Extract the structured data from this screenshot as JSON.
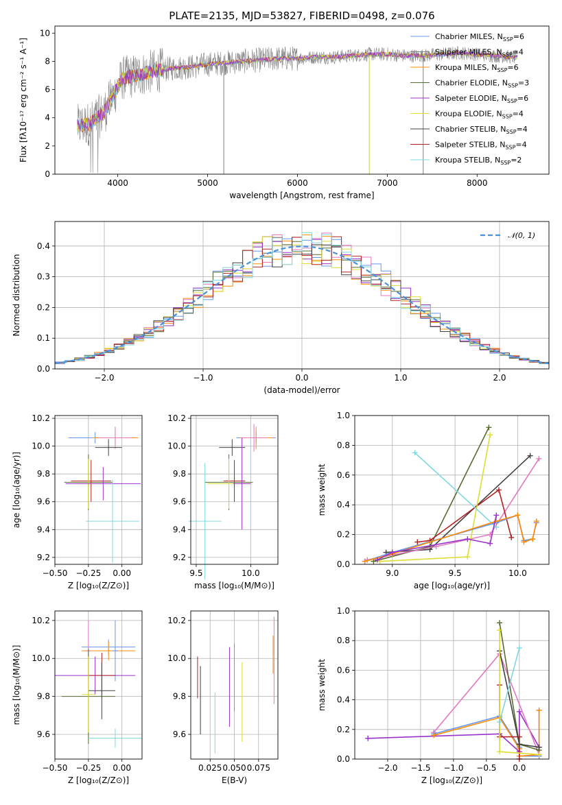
{
  "title": "PLATE=2135, MJD=53827, FIBERID=0498, z=0.076",
  "colors": {
    "chabrier_miles": "#6495ed",
    "salpeter_miles": "#808080",
    "kroupa_miles": "#ff8c00",
    "chabrier_elodie": "#556b2f",
    "salpeter_elodie": "#9932cc",
    "kroupa_elodie": "#dddd33",
    "chabrier_stelib": "#404040",
    "salpeter_stelib": "#b22222",
    "kroupa_stelib": "#7fd8e0",
    "pink": "#e377c2",
    "green": "#6b8e6b",
    "normal_curve": "#4a90d9"
  },
  "chart_data": [
    {
      "id": "spectrum",
      "type": "line",
      "title": "PLATE=2135, MJD=53827, FIBERID=0498, z=0.076",
      "xlabel": "wavelength [Angstrom, rest frame]",
      "ylabel": "Flux [fλ10⁻¹⁷ erg cm⁻² s⁻¹ A⁻¹]",
      "xlim": [
        3300,
        8800
      ],
      "ylim": [
        0,
        10.5
      ],
      "xticks": [
        4000,
        5000,
        6000,
        7000,
        8000
      ],
      "yticks": [
        0,
        2,
        4,
        6,
        8,
        10
      ],
      "legend_position": "right",
      "legend": [
        "Chabrier MILES, N_SSP=6",
        "Salpeter MILES, N_SSP=4",
        "Kroupa MILES, N_SSP=6",
        "Chabrier ELODIE, N_SSP=3",
        "Salpeter ELODIE, N_SSP=6",
        "Kroupa ELODIE, N_SSP=4",
        "Chabrier STELIB, N_SSP=4",
        "Salpeter STELIB, N_SSP=4",
        "Kroupa STELIB, N_SSP=2"
      ],
      "continuum": {
        "x": [
          3550,
          3700,
          3850,
          3950,
          4050,
          4200,
          4400,
          4600,
          4800,
          5000,
          5200,
          5400,
          5600,
          5800,
          6000,
          6200,
          6400,
          6600,
          6800,
          7000,
          7200,
          7400,
          7600,
          7800,
          8000,
          8200,
          8400
        ],
        "y": [
          3.4,
          3.6,
          4.4,
          5.6,
          6.8,
          7.0,
          7.3,
          7.5,
          7.6,
          7.8,
          7.9,
          8.0,
          8.1,
          8.2,
          8.2,
          8.3,
          8.3,
          8.4,
          8.5,
          8.5,
          8.4,
          8.4,
          8.5,
          8.6,
          8.5,
          8.4,
          8.3
        ]
      }
    },
    {
      "id": "residuals",
      "type": "bar",
      "xlabel": "(data-model)/error",
      "ylabel": "Normed distribution",
      "xlim": [
        -2.5,
        2.5
      ],
      "ylim": [
        0,
        0.48
      ],
      "xticks": [
        -2,
        -1,
        0,
        1,
        2
      ],
      "yticks": [
        0.0,
        0.1,
        0.2,
        0.3,
        0.4
      ],
      "legend": [
        "𝒩(0, 1)"
      ],
      "legend_position": "top-right",
      "bin_width": 0.1,
      "approx_distribution": "normal(0, 1)"
    },
    {
      "id": "age_vs_Z",
      "type": "scatter",
      "xlabel": "Z [log₁₀(Z/Z⊙)]",
      "ylabel": "age  [log₁₀(age/yr)]",
      "xlim": [
        -0.5,
        0.15
      ],
      "ylim": [
        9.15,
        10.22
      ],
      "xticks": [
        -0.5,
        -0.25,
        0.0
      ],
      "xticklabels": [
        "−0.50",
        "−0.25",
        "0.00"
      ],
      "yticks": [
        9.2,
        9.4,
        9.6,
        9.8,
        10.0,
        10.2
      ],
      "points": [
        {
          "x": -0.2,
          "y": 10.06,
          "xerr": 0.2,
          "yerr": 0.04,
          "color": "chabrier_miles"
        },
        {
          "x": -0.05,
          "y": 10.06,
          "xerr": 0.17,
          "yerr": 0.05,
          "color": "kroupa_miles"
        },
        {
          "x": -0.05,
          "y": 10.06,
          "xerr": 0.12,
          "yerr": 0.08,
          "color": "pink"
        },
        {
          "x": -0.1,
          "y": 9.99,
          "xerr": 0.1,
          "yerr": 0.06,
          "color": "chabrier_stelib"
        },
        {
          "x": -0.25,
          "y": 9.74,
          "xerr": 0.18,
          "yerr": 0.2,
          "color": "chabrier_elodie"
        },
        {
          "x": -0.23,
          "y": 9.75,
          "xerr": 0.15,
          "yerr": 0.15,
          "color": "salpeter_stelib"
        },
        {
          "x": -0.25,
          "y": 9.73,
          "xerr": 0.1,
          "yerr": 0.18,
          "color": "kroupa_elodie"
        },
        {
          "x": -0.14,
          "y": 9.73,
          "xerr": 0.28,
          "yerr": 0.12,
          "color": "salpeter_elodie"
        },
        {
          "x": -0.07,
          "y": 9.46,
          "xerr": 0.2,
          "yerr": 0.3,
          "color": "kroupa_stelib"
        }
      ]
    },
    {
      "id": "age_vs_mass",
      "type": "scatter",
      "xlabel": "mass [log₁₀(M/M⊙)]",
      "xlim": [
        9.45,
        10.25
      ],
      "ylim": [
        9.15,
        10.22
      ],
      "xticks": [
        9.5,
        10.0
      ],
      "yticks": [
        9.2,
        9.4,
        9.6,
        9.8,
        10.0,
        10.2
      ],
      "points": [
        {
          "x": 10.05,
          "y": 10.06,
          "xerr": 0.18,
          "yerr": 0.04,
          "color": "chabrier_miles"
        },
        {
          "x": 10.05,
          "y": 10.06,
          "xerr": 0.15,
          "yerr": 0.08,
          "color": "kroupa_miles"
        },
        {
          "x": 10.03,
          "y": 10.06,
          "xerr": 0.12,
          "yerr": 0.1,
          "color": "pink"
        },
        {
          "x": 9.83,
          "y": 9.99,
          "xerr": 0.12,
          "yerr": 0.06,
          "color": "chabrier_stelib"
        },
        {
          "x": 9.8,
          "y": 9.74,
          "xerr": 0.22,
          "yerr": 0.2,
          "color": "chabrier_elodie"
        },
        {
          "x": 9.85,
          "y": 9.75,
          "xerr": 0.1,
          "yerr": 0.15,
          "color": "salpeter_stelib"
        },
        {
          "x": 9.8,
          "y": 9.73,
          "xerr": 0.2,
          "yerr": 0.18,
          "color": "kroupa_elodie"
        },
        {
          "x": 9.92,
          "y": 9.73,
          "xerr": 0.08,
          "yerr": 0.33,
          "color": "salpeter_elodie"
        },
        {
          "x": 9.58,
          "y": 9.46,
          "xerr": 0.15,
          "yerr": 0.42,
          "color": "kroupa_stelib"
        }
      ]
    },
    {
      "id": "mass_weight_vs_age",
      "type": "line",
      "xlabel": "age  [log₁₀(age/yr)]",
      "ylabel": "mass weight",
      "xlim": [
        8.7,
        10.25
      ],
      "ylim": [
        0,
        1.0
      ],
      "xticks": [
        9.0,
        9.5,
        10.0
      ],
      "yticks": [
        0.0,
        0.2,
        0.4,
        0.6,
        0.8,
        1.0
      ],
      "series": [
        {
          "color": "chabrier_elodie",
          "x": [
            8.85,
            9.3,
            9.77
          ],
          "y": [
            0.02,
            0.12,
            0.92
          ]
        },
        {
          "color": "chabrier_stelib",
          "x": [
            8.95,
            9.3,
            10.1
          ],
          "y": [
            0.08,
            0.1,
            0.73
          ]
        },
        {
          "color": "pink",
          "x": [
            8.8,
            9.35,
            9.78,
            10.17
          ],
          "y": [
            0.03,
            0.12,
            0.2,
            0.71
          ]
        },
        {
          "color": "salpeter_stelib",
          "x": [
            9.2,
            9.3,
            9.85,
            9.95
          ],
          "y": [
            0.15,
            0.16,
            0.5,
            0.18
          ]
        },
        {
          "color": "kroupa_elodie",
          "x": [
            8.9,
            9.6,
            9.78
          ],
          "y": [
            0.02,
            0.05,
            0.87
          ]
        },
        {
          "color": "kroupa_stelib",
          "x": [
            9.18,
            9.83
          ],
          "y": [
            0.75,
            0.25
          ]
        },
        {
          "color": "chabrier_miles",
          "x": [
            8.78,
            9.0,
            9.83,
            10.0,
            10.05,
            10.12,
            10.15
          ],
          "y": [
            0.02,
            0.08,
            0.28,
            0.33,
            0.16,
            0.17,
            0.28
          ]
        },
        {
          "color": "kroupa_miles",
          "x": [
            8.78,
            9.0,
            9.83,
            10.0,
            10.05,
            10.12,
            10.15
          ],
          "y": [
            0.02,
            0.07,
            0.29,
            0.33,
            0.15,
            0.17,
            0.29
          ]
        },
        {
          "color": "salpeter_elodie",
          "x": [
            8.88,
            9.0,
            9.6,
            9.78,
            9.83
          ],
          "y": [
            0.03,
            0.08,
            0.17,
            0.14,
            0.33
          ]
        }
      ]
    },
    {
      "id": "mass_vs_Z",
      "type": "scatter",
      "xlabel": "Z [log₁₀(Z/Z⊙)]",
      "ylabel": "mass [log₁₀(M/M⊙)]",
      "xlim": [
        -0.5,
        0.15
      ],
      "ylim": [
        9.47,
        10.25
      ],
      "xticks": [
        -0.5,
        -0.25,
        0.0
      ],
      "xticklabels": [
        "−0.50",
        "−0.25",
        "0.00"
      ],
      "yticks": [
        9.6,
        9.8,
        10.0,
        10.2
      ],
      "points": [
        {
          "x": -0.1,
          "y": 10.06,
          "xerr": 0.2,
          "yerr": 0.04,
          "color": "chabrier_miles"
        },
        {
          "x": -0.1,
          "y": 10.04,
          "xerr": 0.2,
          "yerr": 0.05,
          "color": "kroupa_miles"
        },
        {
          "x": -0.25,
          "y": 10.04,
          "xerr": 0.02,
          "yerr": 0.16,
          "color": "pink"
        },
        {
          "x": -0.05,
          "y": 10.04,
          "xerr": 0.02,
          "yerr": 0.16,
          "color": "chabrier_miles"
        },
        {
          "x": -0.2,
          "y": 9.91,
          "xerr": 0.3,
          "yerr": 0.1,
          "color": "salpeter_elodie"
        },
        {
          "x": -0.15,
          "y": 9.91,
          "xerr": 0.1,
          "yerr": 0.12,
          "color": "salpeter_stelib"
        },
        {
          "x": -0.15,
          "y": 9.83,
          "xerr": 0.1,
          "yerr": 0.15,
          "color": "chabrier_stelib"
        },
        {
          "x": -0.25,
          "y": 9.8,
          "xerr": 0.2,
          "yerr": 0.25,
          "color": "chabrier_elodie"
        },
        {
          "x": -0.25,
          "y": 9.81,
          "xerr": 0.05,
          "yerr": 0.2,
          "color": "kroupa_elodie"
        },
        {
          "x": -0.05,
          "y": 9.58,
          "xerr": 0.2,
          "yerr": 0.05,
          "color": "kroupa_stelib"
        }
      ]
    },
    {
      "id": "mass_vs_ebv",
      "type": "scatter",
      "xlabel": "E(B-V)",
      "xlim": [
        0.005,
        0.095
      ],
      "ylim": [
        9.47,
        10.25
      ],
      "xticks": [
        0.025,
        0.05,
        0.075
      ],
      "xticklabels": [
        "0.025",
        "0.050",
        "0.075"
      ],
      "yticks": [
        9.6,
        9.8,
        10.0,
        10.2
      ],
      "points": [
        {
          "x": 0.012,
          "y": 9.9,
          "yerr": 0.11,
          "color": "salpeter_stelib"
        },
        {
          "x": 0.015,
          "y": 9.78,
          "yerr": 0.18,
          "color": "chabrier_stelib"
        },
        {
          "x": 0.03,
          "y": 9.66,
          "yerr": 0.16,
          "color": "kroupa_stelib"
        },
        {
          "x": 0.045,
          "y": 9.85,
          "yerr": 0.21,
          "color": "salpeter_elodie"
        },
        {
          "x": 0.05,
          "y": 9.9,
          "yerr": 0.18,
          "color": "chabrier_miles"
        },
        {
          "x": 0.058,
          "y": 9.77,
          "yerr": 0.21,
          "color": "kroupa_elodie"
        },
        {
          "x": 0.09,
          "y": 10.02,
          "yerr": 0.1,
          "color": "kroupa_miles"
        },
        {
          "x": 0.091,
          "y": 9.99,
          "yerr": 0.23,
          "color": "pink"
        }
      ]
    },
    {
      "id": "mass_weight_vs_Z",
      "type": "line",
      "xlabel": "Z [log₁₀(Z/Z⊙)]",
      "ylabel": "mass weight",
      "xlim": [
        -2.5,
        0.45
      ],
      "ylim": [
        0,
        1.0
      ],
      "xticks": [
        -2.0,
        -1.5,
        -1.0,
        -0.5,
        0.0
      ],
      "xticklabels": [
        "−2.0",
        "−1.5",
        "−1.0",
        "−0.5",
        "0.0"
      ],
      "yticks": [
        0.0,
        0.2,
        0.4,
        0.6,
        0.8,
        1.0
      ],
      "series": [
        {
          "color": "salpeter_elodie",
          "x": [
            -2.3,
            -0.3,
            0.0,
            0.0,
            0.3
          ],
          "y": [
            0.14,
            0.17,
            0.05,
            0.32,
            0.08
          ]
        },
        {
          "color": "pink",
          "x": [
            -1.3,
            -0.3,
            0.3
          ],
          "y": [
            0.18,
            0.71,
            0.03
          ]
        },
        {
          "color": "chabrier_miles",
          "x": [
            -1.3,
            -0.3,
            0.0,
            0.0,
            0.3,
            0.3
          ],
          "y": [
            0.17,
            0.29,
            0.08,
            0.02,
            0.02,
            0.33
          ]
        },
        {
          "color": "kroupa_miles",
          "x": [
            -1.3,
            -0.3,
            0.0,
            0.0,
            0.3,
            0.3
          ],
          "y": [
            0.16,
            0.28,
            0.07,
            0.02,
            0.03,
            0.33
          ]
        },
        {
          "color": "salpeter_stelib",
          "x": [
            -0.3,
            -0.3,
            0.0,
            0.0
          ],
          "y": [
            0.5,
            0.15,
            0.15,
            0.0
          ]
        },
        {
          "color": "chabrier_elodie",
          "x": [
            -0.3,
            0.0,
            0.3
          ],
          "y": [
            0.92,
            0.1,
            0.06
          ]
        },
        {
          "color": "chabrier_stelib",
          "x": [
            -0.3,
            0.0,
            0.3
          ],
          "y": [
            0.73,
            0.1,
            0.08
          ]
        },
        {
          "color": "kroupa_elodie",
          "x": [
            -0.3,
            -0.3,
            0.3
          ],
          "y": [
            0.87,
            0.05,
            0.03
          ]
        },
        {
          "color": "kroupa_stelib",
          "x": [
            -0.3,
            0.0
          ],
          "y": [
            0.25,
            0.75
          ]
        }
      ]
    }
  ]
}
